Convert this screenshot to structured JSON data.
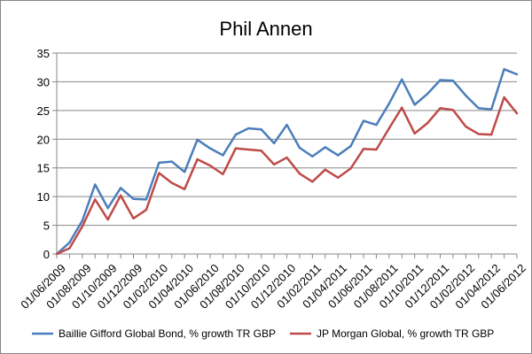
{
  "chart_data": {
    "type": "line",
    "title": "Phil Annen",
    "xlabel": "",
    "ylabel": "",
    "ylim": [
      0,
      35
    ],
    "y_ticks": [
      0,
      5,
      10,
      15,
      20,
      25,
      30,
      35
    ],
    "grid": true,
    "legend_position": "bottom",
    "x": [
      "01/06/2009",
      "01/07/2009",
      "01/08/2009",
      "01/09/2009",
      "01/10/2009",
      "01/11/2009",
      "01/12/2009",
      "01/01/2010",
      "01/02/2010",
      "01/03/2010",
      "01/04/2010",
      "01/05/2010",
      "01/06/2010",
      "01/07/2010",
      "01/08/2010",
      "01/09/2010",
      "01/10/2010",
      "01/11/2010",
      "01/12/2010",
      "01/01/2011",
      "01/02/2011",
      "01/03/2011",
      "01/04/2011",
      "01/05/2011",
      "01/06/2011",
      "01/07/2011",
      "01/08/2011",
      "01/09/2011",
      "01/10/2011",
      "01/11/2011",
      "01/12/2011",
      "01/01/2012",
      "01/02/2012",
      "01/03/2012",
      "01/04/2012",
      "01/05/2012",
      "01/06/2012"
    ],
    "x_tick_labels": [
      "01/06/2009",
      "01/08/2009",
      "01/10/2009",
      "01/12/2009",
      "01/02/2010",
      "01/04/2010",
      "01/06/2010",
      "01/08/2010",
      "01/10/2010",
      "01/12/2010",
      "01/02/2011",
      "01/04/2011",
      "01/06/2011",
      "01/08/2011",
      "01/10/2011",
      "01/12/2011",
      "01/02/2012",
      "01/04/2012",
      "01/06/2012"
    ],
    "series": [
      {
        "name": "Baillie Gifford Global Bond, % growth TR GBP",
        "color": "#4a7ebb",
        "values": [
          0,
          2,
          5.8,
          12.1,
          8,
          11.5,
          9.6,
          9.5,
          15.9,
          16.1,
          14.3,
          19.9,
          18.4,
          17.2,
          20.8,
          21.9,
          21.7,
          19.3,
          22.5,
          18.5,
          17,
          18.6,
          17.2,
          18.8,
          23.2,
          22.5,
          26.2,
          30.4,
          26,
          27.9,
          30.3,
          30.2,
          27.6,
          25.4,
          25.2,
          32.2,
          31.3
        ]
      },
      {
        "name": "JP Morgan Global, % growth TR GBP",
        "color": "#be4b48",
        "values": [
          0,
          1,
          4.8,
          9.5,
          6,
          10.2,
          6.2,
          7.7,
          14.1,
          12.4,
          11.3,
          16.5,
          15.4,
          13.9,
          18.4,
          18.2,
          18,
          15.6,
          16.8,
          14,
          12.6,
          14.7,
          13.3,
          14.9,
          18.3,
          18.2,
          21.9,
          25.5,
          21,
          22.8,
          25.4,
          25.1,
          22.2,
          20.9,
          20.8,
          27.3,
          24.5
        ]
      }
    ]
  }
}
